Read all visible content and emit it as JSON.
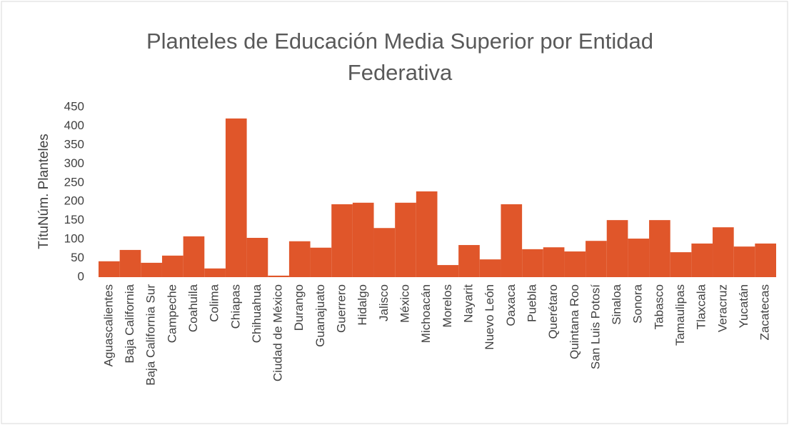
{
  "chart_data": {
    "type": "bar",
    "title": "Planteles de Educación Media Superior por Entidad Federativa",
    "y_label": "TítuNúm. Planteles",
    "categories": [
      "Aguascalientes",
      "Baja California",
      "Baja California Sur",
      "Campeche",
      "Coahuila",
      "Colima",
      "Chiapas",
      "Chihuahua",
      "Ciudad de México",
      "Durango",
      "Guanajuato",
      "Guerrero",
      "Hidalgo",
      "Jalisco",
      "México",
      "Michoacán",
      "Morelos",
      "Nayarit",
      "Nuevo León",
      "Oaxaca",
      "Puebla",
      "Querétaro",
      "Quintana Roo",
      "San Luis Potosí",
      "Sinaloa",
      "Sonora",
      "Tabasco",
      "Tamaulipas",
      "Tlaxcala",
      "Veracruz",
      "Yucatán",
      "Zacatecas"
    ],
    "values": [
      42,
      72,
      38,
      57,
      108,
      23,
      420,
      104,
      4,
      95,
      78,
      193,
      197,
      130,
      197,
      227,
      32,
      85,
      47,
      193,
      74,
      79,
      68,
      96,
      151,
      102,
      151,
      66,
      89,
      132,
      81,
      89
    ],
    "color": "#e0562a",
    "ylim": [
      0,
      450
    ],
    "yticks": [
      0,
      50,
      100,
      150,
      200,
      250,
      300,
      350,
      400,
      450
    ],
    "grid": false
  }
}
